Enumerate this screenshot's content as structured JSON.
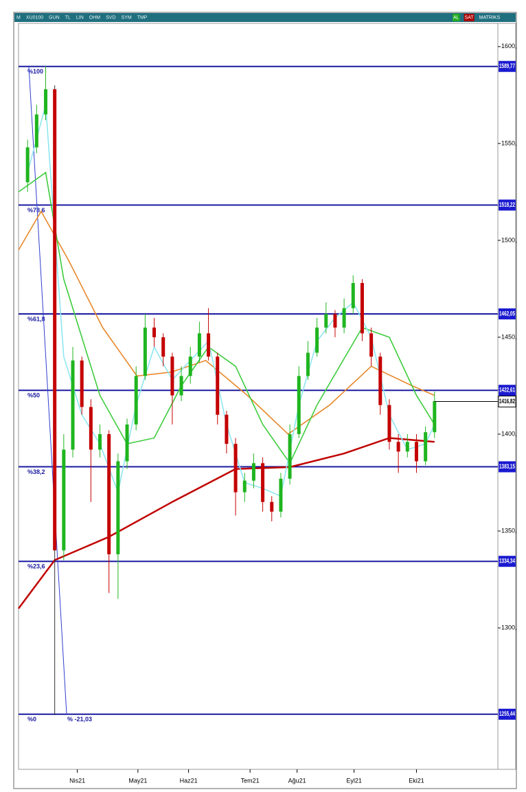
{
  "toolbar": {
    "items": [
      "M",
      "XU0100",
      "GUN",
      "TL",
      "LIN",
      "OHM",
      "SVD",
      "SYM",
      "TMP"
    ],
    "right_items": [
      "AL",
      "SAT",
      "MATRIKS"
    ]
  },
  "chart_data": {
    "type": "candlestick",
    "up_color": "#1fb51f",
    "down_color": "#c40000",
    "x": [
      0,
      1,
      2,
      3,
      4,
      5,
      6,
      7,
      8,
      9,
      10,
      11,
      12,
      13,
      14,
      15,
      16,
      17,
      18,
      19,
      20,
      21,
      22,
      23,
      24,
      25,
      26,
      27,
      28,
      29,
      30,
      31,
      32,
      33,
      34,
      35,
      36,
      37,
      38,
      39,
      40,
      41,
      42,
      43,
      44,
      45
    ],
    "open": [
      1530,
      1548,
      1565,
      1578,
      1340,
      1392,
      1438,
      1414,
      1392,
      1400,
      1338,
      1386,
      1405,
      1430,
      1455,
      1450,
      1440,
      1420,
      1430,
      1440,
      1452,
      1440,
      1410,
      1395,
      1370,
      1376,
      1385,
      1365,
      1360,
      1377,
      1400,
      1430,
      1442,
      1455,
      1462,
      1455,
      1465,
      1478,
      1452,
      1440,
      1415,
      1396,
      1391,
      1396,
      1386,
      1401
    ],
    "high": [
      1552,
      1570,
      1590,
      1580,
      1400,
      1445,
      1440,
      1418,
      1405,
      1402,
      1390,
      1408,
      1435,
      1462,
      1460,
      1452,
      1442,
      1435,
      1445,
      1458,
      1465,
      1442,
      1412,
      1398,
      1380,
      1390,
      1388,
      1368,
      1380,
      1405,
      1435,
      1448,
      1460,
      1468,
      1464,
      1470,
      1482,
      1480,
      1455,
      1442,
      1418,
      1400,
      1400,
      1400,
      1404,
      1422
    ],
    "low": [
      1525,
      1545,
      1562,
      1255,
      1335,
      1388,
      1410,
      1365,
      1388,
      1318,
      1315,
      1382,
      1402,
      1428,
      1445,
      1435,
      1405,
      1417,
      1426,
      1437,
      1438,
      1405,
      1390,
      1358,
      1365,
      1372,
      1360,
      1355,
      1357,
      1374,
      1398,
      1428,
      1440,
      1452,
      1450,
      1452,
      1462,
      1448,
      1435,
      1410,
      1392,
      1380,
      1388,
      1380,
      1384,
      1398
    ],
    "close": [
      1548,
      1565,
      1578,
      1340,
      1392,
      1438,
      1414,
      1392,
      1400,
      1338,
      1386,
      1405,
      1430,
      1455,
      1450,
      1440,
      1420,
      1430,
      1440,
      1452,
      1440,
      1410,
      1395,
      1370,
      1376,
      1385,
      1365,
      1360,
      1377,
      1400,
      1430,
      1442,
      1455,
      1462,
      1455,
      1465,
      1478,
      1452,
      1440,
      1415,
      1396,
      1391,
      1396,
      1386,
      1401,
      1417
    ],
    "lines": [
      {
        "color": "#c00000",
        "x": [
          -1,
          3,
          9,
          16,
          23,
          29,
          35,
          40,
          45
        ],
        "values": [
          1310,
          1335,
          1347,
          1365,
          1382,
          1383,
          1390,
          1398,
          1396
        ]
      },
      {
        "color": "#e8882a",
        "x": [
          -1,
          1.5,
          4.5,
          8.3,
          12.1,
          15.9,
          19.7,
          24.3,
          28.8,
          33.4,
          38,
          42.5,
          45
        ],
        "values": [
          1495,
          1515,
          1490,
          1455,
          1430,
          1432,
          1438,
          1420,
          1400,
          1415,
          1435,
          1425,
          1420
        ]
      },
      {
        "color": "#3ccc3c",
        "x": [
          -1,
          2,
          4,
          8,
          11,
          14,
          17,
          20,
          23,
          26,
          29,
          32,
          37,
          40,
          43,
          45
        ],
        "values": [
          1525,
          1535,
          1480,
          1420,
          1395,
          1398,
          1425,
          1445,
          1435,
          1405,
          1385,
          1415,
          1455,
          1450,
          1420,
          1405
        ]
      },
      {
        "color": "#8fe6f0",
        "x": [
          0,
          2,
          4,
          6,
          8,
          10,
          12,
          14,
          16,
          18,
          20,
          22,
          24,
          26,
          28,
          30,
          32,
          34,
          36,
          38,
          40,
          42,
          44,
          45
        ],
        "values": [
          1535,
          1570,
          1440,
          1410,
          1395,
          1370,
          1415,
          1445,
          1428,
          1438,
          1448,
          1405,
          1375,
          1372,
          1368,
          1415,
          1448,
          1460,
          1468,
          1450,
          1410,
          1392,
          1395,
          1405
        ]
      }
    ],
    "fib_levels": {
      "names": [
        "%100",
        "%78,6",
        "%61,8",
        "%50",
        "%38,2",
        "%23,6",
        "%0"
      ],
      "values": [
        1589.77,
        1518.22,
        1462.05,
        1422.61,
        1383.15,
        1334.34,
        1255.44
      ],
      "value_labels": [
        "1589,77",
        "1518,22",
        "1462,05",
        "1422,61",
        "1383,15",
        "1334,34",
        "1255,44"
      ]
    },
    "annotation": "% -21,03",
    "last_price": 1416.82,
    "last_price_label": "1416,82",
    "xlim": [
      -1,
      52
    ],
    "xticks": [
      {
        "value": 5.5,
        "label": "Nis21"
      },
      {
        "value": 12.2,
        "label": "May21"
      },
      {
        "value": 17.8,
        "label": "Haz21"
      },
      {
        "value": 24.6,
        "label": "Tem21"
      },
      {
        "value": 29.8,
        "label": "Ağu21"
      },
      {
        "value": 36.1,
        "label": "Eyl21"
      },
      {
        "value": 43,
        "label": "Eki21"
      }
    ],
    "ylim": [
      1227,
      1612
    ],
    "yticks": [
      {
        "value": 1300,
        "label": "1300,"
      },
      {
        "value": 1350,
        "label": "1350,"
      },
      {
        "value": 1400,
        "label": "1400,"
      },
      {
        "value": 1450,
        "label": "1450,"
      },
      {
        "value": 1500,
        "label": "1500,"
      },
      {
        "value": 1550,
        "label": "1550,"
      },
      {
        "value": 1600,
        "label": "1600,"
      }
    ]
  }
}
